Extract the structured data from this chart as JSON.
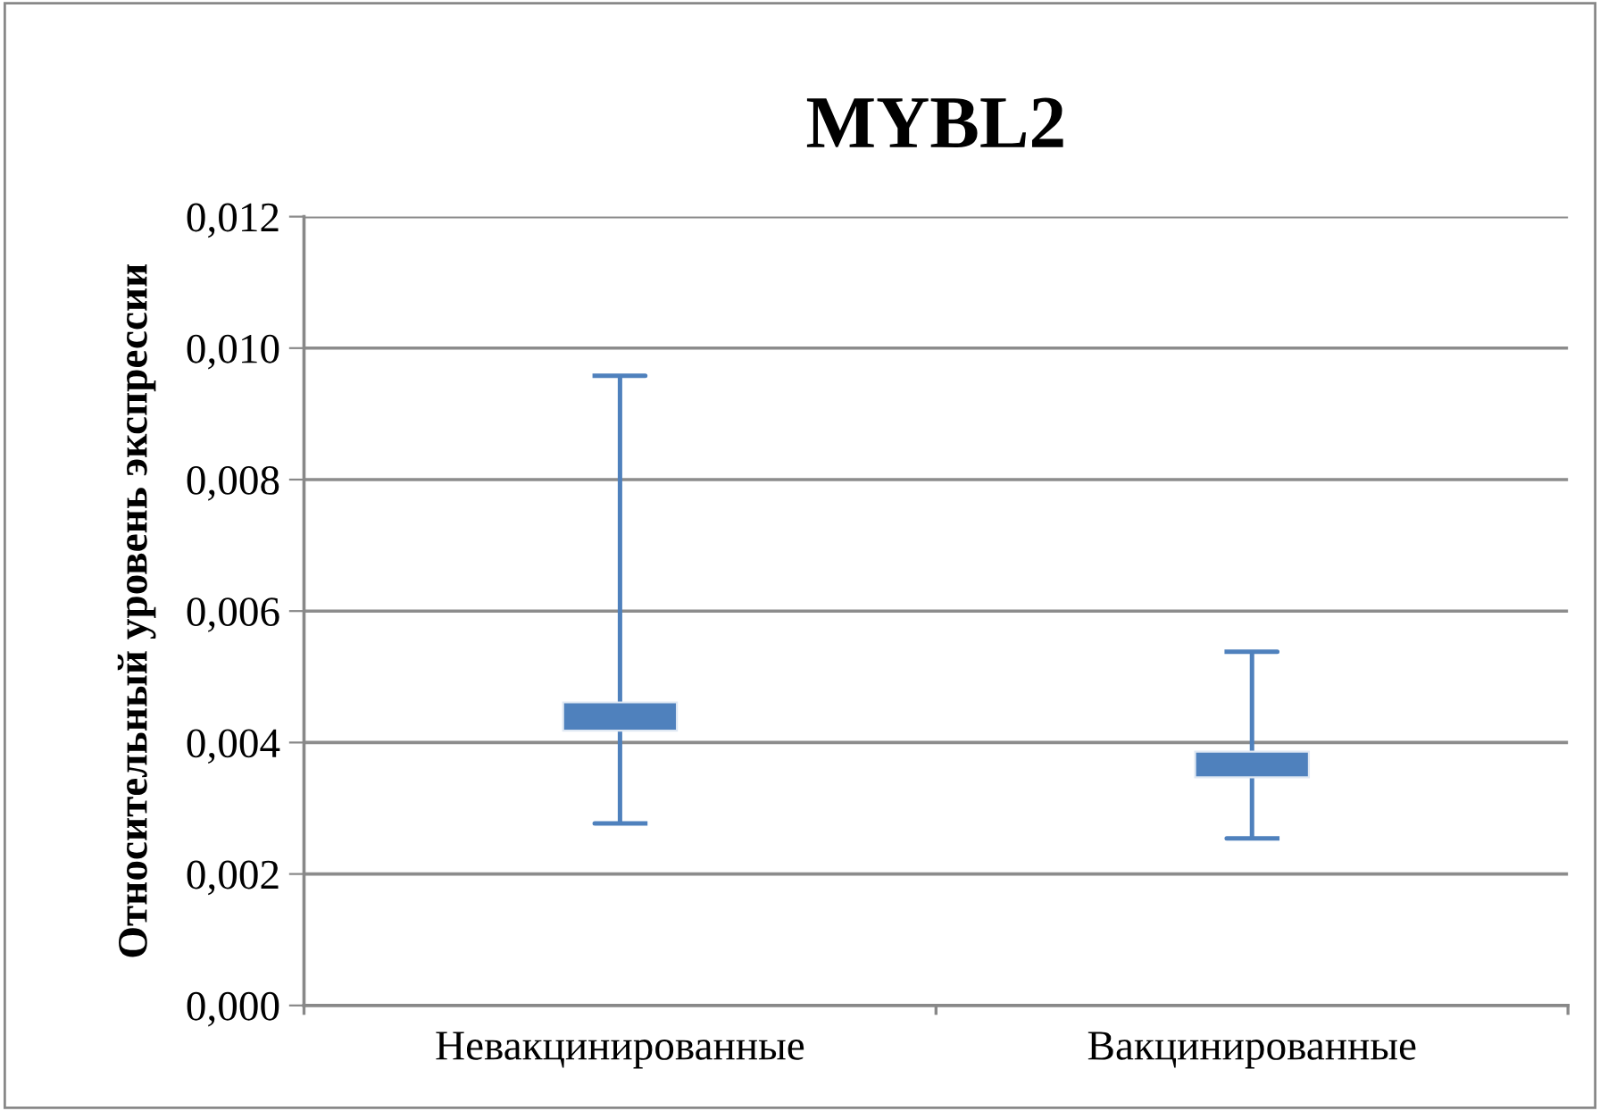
{
  "chart_data": {
    "type": "candlestick",
    "title": "MYBL2",
    "ylabel": "Относительный уровень экспрессии",
    "categories": [
      "Невакцинированные",
      "Вакцинированные"
    ],
    "ohlc": [
      [
        0.00418,
        0.00958,
        0.00277,
        0.00461
      ],
      [
        0.00347,
        0.00538,
        0.00254,
        0.00386
      ]
    ],
    "color": "#4f81bd",
    "ylim": [
      0,
      0.012
    ],
    "yticks": [
      {
        "value": 0,
        "label": "0,000"
      },
      {
        "value": 0.002,
        "label": "0,002"
      },
      {
        "value": 0.004,
        "label": "0,004"
      },
      {
        "value": 0.006,
        "label": "0,006"
      },
      {
        "value": 0.008,
        "label": "0,008"
      },
      {
        "value": 0.01,
        "label": "0,010"
      },
      {
        "value": 0.012,
        "label": "0,012"
      }
    ],
    "grid": "y",
    "legend": false
  }
}
